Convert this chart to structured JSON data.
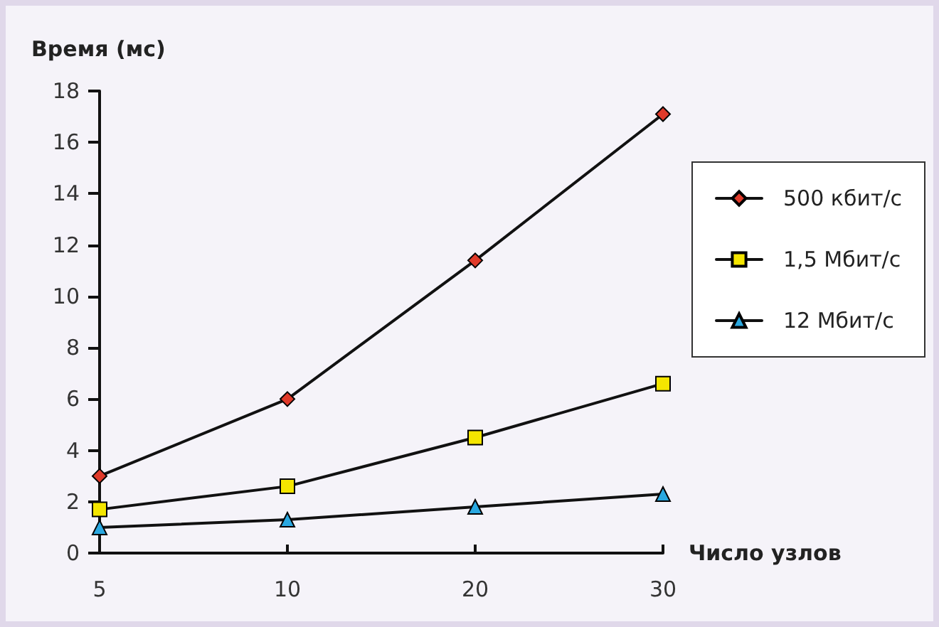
{
  "chart_data": {
    "type": "line",
    "xlabel": "Число узлов",
    "ylabel": "Время (мс)",
    "categories": [
      "5",
      "10",
      "20",
      "30"
    ],
    "series": [
      {
        "name": "500 кбит/с",
        "color": "#e03a2a",
        "marker": "diamond",
        "values": [
          3.0,
          6.0,
          11.4,
          17.1
        ]
      },
      {
        "name": "1,5 Мбит/с",
        "color": "#f5e600",
        "marker": "square",
        "values": [
          1.7,
          2.6,
          4.5,
          6.6
        ]
      },
      {
        "name": "12 Мбит/с",
        "color": "#2aa8e0",
        "marker": "triangle",
        "values": [
          1.0,
          1.3,
          1.8,
          2.3
        ]
      }
    ],
    "ylim": [
      0,
      18
    ],
    "yticks": [
      0,
      2,
      4,
      6,
      8,
      10,
      12,
      14,
      16,
      18
    ],
    "grid": false,
    "legend": "right"
  }
}
